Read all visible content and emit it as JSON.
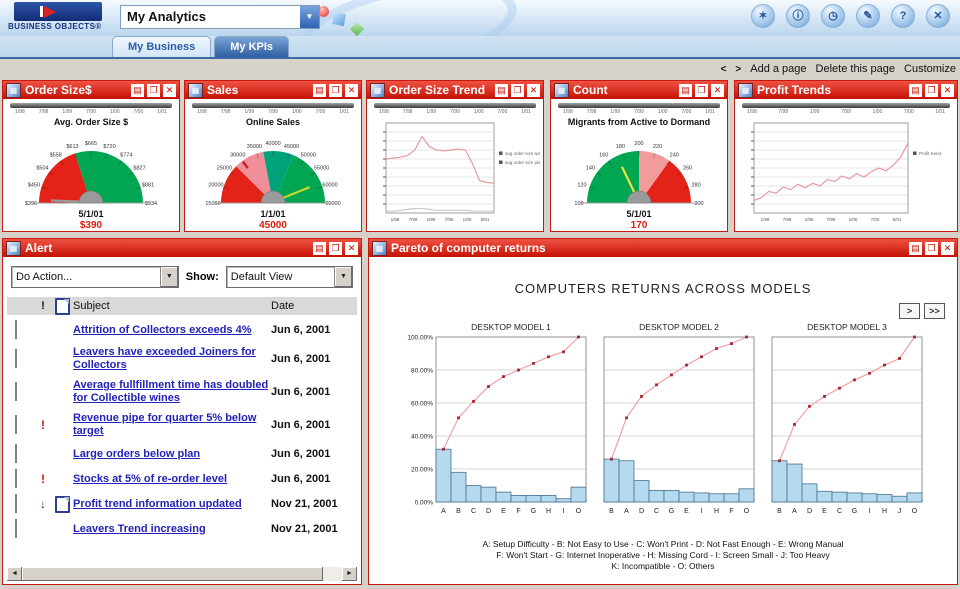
{
  "icons": {
    "report": "▤",
    "window": "❐",
    "close": "✕",
    "panel": "▦",
    "dropdown": "▼",
    "left": "◄",
    "right": "►",
    "excl": "!",
    "arrow_down": "↓",
    "prev": "<",
    "next": ">"
  },
  "header": {
    "brand": "BUSINESS OBJECTS®",
    "title_select": "My Analytics",
    "icons": [
      {
        "name": "new-page-icon",
        "glyph": "✶"
      },
      {
        "name": "info-icon",
        "glyph": "ⓘ"
      },
      {
        "name": "clock-icon",
        "glyph": "◷"
      },
      {
        "name": "edit-icon",
        "glyph": "✎"
      },
      {
        "name": "help-icon",
        "glyph": "?"
      },
      {
        "name": "close-icon",
        "glyph": "✕"
      }
    ],
    "tabs": [
      {
        "label": "My Business",
        "active": false
      },
      {
        "label": "My KPIs",
        "active": true
      }
    ],
    "page_actions": {
      "add": "Add a page",
      "delete": "Delete this page",
      "customize": "Customize"
    }
  },
  "slider_ticks": [
    "1/98",
    "7/98",
    "1/99",
    "7/99",
    "1/00",
    "7/00",
    "1/01"
  ],
  "panels": {
    "order_size": {
      "title": "Order Size$",
      "gauge": {
        "chart_title": "Avg. Order Size $",
        "labels": [
          "$396",
          "$450",
          "$504",
          "$558",
          "$613",
          "$665",
          "$720",
          "$774",
          "$827",
          "$881",
          "$934"
        ],
        "segments": [
          {
            "from": 0,
            "to": 0.4,
            "color": "#e32318"
          },
          {
            "from": 0.4,
            "to": 1,
            "color": "#00a651"
          }
        ],
        "needle": {
          "frac": 0.02,
          "color": "#9a9a9a"
        },
        "date": "5/1/01",
        "value": "$390",
        "value_color": "#d81c10"
      }
    },
    "sales": {
      "title": "Sales",
      "gauge": {
        "chart_title": "Online Sales",
        "labels": [
          "15000",
          "20000",
          "25000",
          "30000",
          "35000",
          "40000",
          "45000",
          "50000",
          "55000",
          "60000",
          "65000"
        ],
        "segments": [
          {
            "from": 0,
            "to": 0.25,
            "color": "#e32318"
          },
          {
            "from": 0.25,
            "to": 0.44,
            "color": "#ef8f99"
          },
          {
            "from": 0.44,
            "to": 0.63,
            "color": "#00a27a"
          },
          {
            "from": 0.63,
            "to": 1,
            "color": "#00a651"
          }
        ],
        "needle": {
          "frac": 0.87,
          "color": "#c8d82a"
        },
        "marker": {
          "frac": 0.3,
          "color": "#cc2020"
        },
        "date": "1/1/01",
        "value": "45000",
        "value_color": "#d81c10"
      }
    },
    "order_size_trend": {
      "title": "Order Size Trend",
      "chart": {
        "type": "line",
        "x_labels": [
          "1/98",
          "7/98",
          "1/99",
          "7/99",
          "1/00",
          "5/01"
        ],
        "series": [
          {
            "name": "avg order size actual",
            "color": "#e89aa0",
            "values": [
              60,
              61,
              62,
              64,
              70,
              85,
              74,
              70,
              69,
              70,
              71,
              70,
              55,
              36,
              34,
              33
            ]
          },
          {
            "name": "avg order size plan",
            "color": "#c9c9c9",
            "values": [
              2,
              2,
              3,
              4,
              5,
              5,
              4,
              3,
              3,
              3,
              3,
              3,
              2,
              2,
              2,
              2
            ]
          }
        ],
        "legend": [
          "avg order size actual",
          "avg order size plan"
        ],
        "ylim": [
          0,
          100
        ]
      }
    },
    "count": {
      "title": "Count",
      "gauge": {
        "chart_title": "Migrants from Active to Dormand",
        "labels": [
          "100",
          "120",
          "140",
          "160",
          "180",
          "200",
          "220",
          "240",
          "260",
          "280",
          "300"
        ],
        "segments": [
          {
            "from": 0,
            "to": 0.5,
            "color": "#00a651"
          },
          {
            "from": 0.5,
            "to": 0.7,
            "color": "#f29b9b"
          },
          {
            "from": 0.7,
            "to": 1,
            "color": "#e32318"
          }
        ],
        "needle": {
          "frac": 0.36,
          "color": "#e8e83a"
        },
        "date": "5/1/01",
        "value": "170",
        "value_color": "#d81c10"
      }
    },
    "profit_trends": {
      "title": "Profit Trends",
      "chart": {
        "type": "line",
        "x_labels": [
          "1/98",
          "7/98",
          "1/99",
          "7/99",
          "1/00",
          "7/00",
          "5/01"
        ],
        "series": [
          {
            "name": "Profit trend",
            "color": "#e89aa0",
            "values": [
              14,
              17,
              24,
              22,
              29,
              26,
              32,
              28,
              33,
              30,
              37,
              35,
              41,
              38,
              44,
              40,
              46,
              50,
              47,
              53,
              62,
              78
            ]
          }
        ],
        "legend": [
          "Profit trend"
        ],
        "ylim": [
          0,
          100
        ]
      }
    }
  },
  "alert": {
    "window_title": "Alert",
    "action_select": "Do Action...",
    "show_label": "Show:",
    "view_select": "Default View",
    "columns": {
      "subject": "Subject",
      "date": "Date"
    },
    "rows": [
      {
        "subject": "Attrition of Collectors exceeds 4%",
        "date": "Jun 6, 2001",
        "priority": false,
        "arrow": false,
        "doc": false
      },
      {
        "subject": "Leavers have exceeded Joiners for Collectors",
        "date": "Jun 6, 2001",
        "priority": false,
        "arrow": false,
        "doc": false
      },
      {
        "subject": "Average fullfillment time has doubled for Collectible wines",
        "date": "Jun 6, 2001",
        "priority": false,
        "arrow": false,
        "doc": false
      },
      {
        "subject": "Revenue pipe for quarter 5% below target",
        "date": "Jun 6, 2001",
        "priority": true,
        "arrow": false,
        "doc": false
      },
      {
        "subject": "Large orders below plan",
        "date": "Jun 6, 2001",
        "priority": false,
        "arrow": false,
        "doc": false
      },
      {
        "subject": "Stocks at 5% of re-order level",
        "date": "Jun 6, 2001",
        "priority": true,
        "arrow": false,
        "doc": false
      },
      {
        "subject": "Profit trend information updated",
        "date": "Nov 21, 2001",
        "priority": false,
        "arrow": true,
        "doc": true
      },
      {
        "subject": "Leavers Trend increasing",
        "date": "Nov 21, 2001",
        "priority": false,
        "arrow": false,
        "doc": false
      }
    ]
  },
  "pareto": {
    "window_title": "Pareto of computer returns",
    "title": "COMPUTERS RETURNS ACROSS MODELS",
    "nav": [
      ">",
      ">>"
    ],
    "y_labels": [
      "100.00%",
      "80.00%",
      "60.00%",
      "40.00%",
      "20.00%",
      "0.00%"
    ],
    "chart_data": [
      {
        "type": "bar",
        "title": "DESKTOP MODEL 1",
        "categories": [
          "A",
          "B",
          "C",
          "D",
          "E",
          "F",
          "G",
          "H",
          "I",
          "O"
        ],
        "values": [
          32,
          18,
          10,
          9,
          6,
          4,
          4,
          4,
          2,
          9
        ],
        "cumulative": [
          32,
          51,
          61,
          70,
          76,
          80,
          84,
          88,
          91,
          100
        ],
        "ylim": [
          0,
          100
        ]
      },
      {
        "type": "bar",
        "title": "DESKTOP MODEL 2",
        "categories": [
          "B",
          "A",
          "D",
          "C",
          "G",
          "E",
          "I",
          "H",
          "F",
          "O"
        ],
        "values": [
          26,
          25,
          13,
          7,
          7,
          6,
          5.5,
          5,
          5,
          8
        ],
        "cumulative": [
          26,
          51,
          64,
          71,
          77,
          83,
          88,
          93,
          96,
          100
        ],
        "ylim": [
          0,
          100
        ]
      },
      {
        "type": "bar",
        "title": "DESKTOP MODEL 3",
        "categories": [
          "B",
          "A",
          "D",
          "E",
          "C",
          "G",
          "I",
          "H",
          "J",
          "O"
        ],
        "values": [
          25,
          23,
          11,
          6.5,
          6,
          5.5,
          5,
          4.5,
          3.5,
          5.5
        ],
        "cumulative": [
          25,
          47,
          58,
          64,
          69,
          74,
          78,
          83,
          87,
          100
        ],
        "ylim": [
          0,
          100
        ]
      }
    ],
    "footnotes": [
      "A: Setup Difficulty - B: Not Easy to Use - C: Won't Print - D: Not Fast Enough - E: Wrong Manual",
      "F: Won't Start - G: Internet Inoperative - H: Missing Cord - I: Screen Small - J: Too Heavy",
      "K: Incompatible - O: Others"
    ]
  }
}
